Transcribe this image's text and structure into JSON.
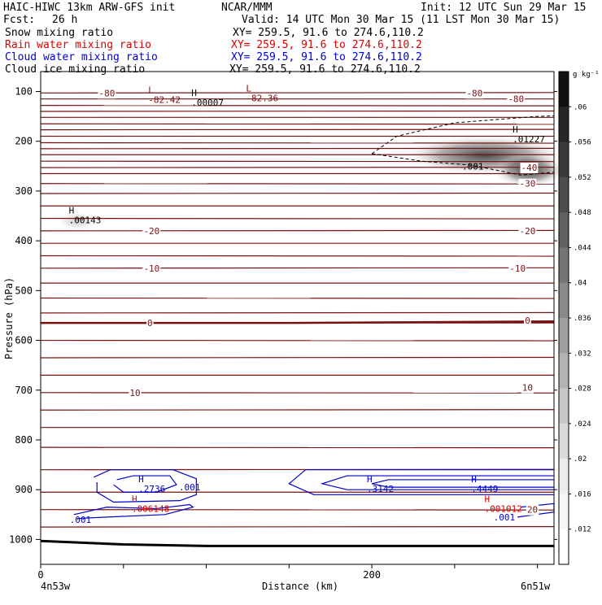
{
  "header": {
    "model": "HAIC-HIWC 13km ARW-GFS init",
    "org": "NCAR/MMM",
    "init": "Init: 12 UTC Sun 29 Mar 15",
    "fcst_label": "Fcst:",
    "fcst_value": "26 h",
    "valid": "Valid: 14 UTC Mon 30 Mar 15 (11 LST Mon 30 Mar 15)"
  },
  "fields": [
    {
      "name": "Snow mixing ratio",
      "xy": "XY= 259.5, 91.6 to 274.6,110.2",
      "color": "#000000"
    },
    {
      "name": "Rain water mixing ratio",
      "xy": "XY= 259.5, 91.6 to 274.6,110.2",
      "color": "#dd0000"
    },
    {
      "name": "Cloud water mixing ratio",
      "xy": "XY= 259.5, 91.6 to 274.6,110.2",
      "color": "#0000cc"
    },
    {
      "name": "Cloud ice mixing ratio",
      "xy": "XY= 259.5, 91.6 to 274.6,110.2",
      "color": "#000000"
    }
  ],
  "chart_data": {
    "type": "contour",
    "xlabel": "Distance (km)",
    "ylabel": "Pressure (hPa)",
    "xlim": [
      0,
      310
    ],
    "ylim": [
      1050,
      60
    ],
    "x_ticks": [
      "0",
      "200"
    ],
    "x_minor_ticks": [
      0,
      50,
      100,
      150,
      200,
      250,
      300
    ],
    "y_ticks": [
      "100",
      "200",
      "300",
      "400",
      "500",
      "600",
      "700",
      "800",
      "900",
      "1000"
    ],
    "y_tick_values": [
      100,
      200,
      300,
      400,
      500,
      600,
      700,
      800,
      900,
      1000
    ],
    "x_left_label": "4n53w",
    "x_right_label": "6n51w",
    "colorbar": {
      "unit": "g kg⁻¹",
      "levels": [
        "0.06",
        ".056",
        ".052",
        ".048",
        ".044",
        ".04",
        ".036",
        ".032",
        ".028",
        ".024",
        ".02",
        ".016",
        ".012"
      ],
      "level_values": [
        0.06,
        0.056,
        0.052,
        0.048,
        0.044,
        0.04,
        0.036,
        0.032,
        0.028,
        0.024,
        0.02,
        0.016,
        0.012
      ],
      "tick_labels": [
        ".06",
        ".056",
        ".052",
        ".048",
        ".044",
        ".04",
        ".036",
        ".032",
        ".028",
        ".024",
        ".02",
        ".016",
        ".012"
      ],
      "colors": [
        "#111111",
        "#262626",
        "#3a3a3a",
        "#4d4d4d",
        "#616161",
        "#757575",
        "#8a8a8a",
        "#9e9e9e",
        "#b3b3b3",
        "#c7c7c7",
        "#dadada",
        "#ececec",
        "#f6f6f6",
        "#ffffff"
      ]
    },
    "isotherm_color": "#7a1010",
    "isotherm_pressures": [
      103,
      115,
      128,
      140,
      152,
      165,
      177,
      190,
      203,
      215,
      227,
      240,
      253,
      265,
      285,
      305,
      330,
      355,
      380,
      405,
      430,
      455,
      485,
      515,
      545,
      565,
      600,
      635,
      670,
      705,
      740,
      775,
      815,
      860,
      905,
      940,
      975
    ],
    "isotherm_labels": [
      {
        "text": "-80",
        "x": 40,
        "p": 103
      },
      {
        "text": "-80",
        "x": 262,
        "p": 103
      },
      {
        "text": "-80",
        "x": 287,
        "p": 115
      },
      {
        "text": "-40",
        "x": 295,
        "p": 253
      },
      {
        "text": "-30",
        "x": 294,
        "p": 285
      },
      {
        "text": "-20",
        "x": 67,
        "p": 380
      },
      {
        "text": "-20",
        "x": 294,
        "p": 380
      },
      {
        "text": "-10",
        "x": 67,
        "p": 455
      },
      {
        "text": "-10",
        "x": 288,
        "p": 455
      },
      {
        "text": "0",
        "x": 66,
        "p": 565
      },
      {
        "text": "0",
        "x": 294,
        "p": 560
      },
      {
        "text": "10",
        "x": 57,
        "p": 705
      },
      {
        "text": "10",
        "x": 294,
        "p": 695
      },
      {
        "text": "20",
        "x": 297,
        "p": 940
      }
    ],
    "extrema": [
      {
        "mark": "L",
        "value": "-82.42",
        "x": 65,
        "p": 113,
        "color": "#7a1010"
      },
      {
        "mark": "L",
        "value": "-82.36",
        "x": 124,
        "p": 110,
        "color": "#7a1010"
      },
      {
        "mark": "H",
        "value": ".00007",
        "x": 91,
        "p": 119,
        "color": "#000000"
      },
      {
        "mark": "H",
        "value": ".01227",
        "x": 285,
        "p": 192,
        "color": "#000000"
      },
      {
        "mark": "H",
        "value": ".00143",
        "x": 17,
        "p": 355,
        "color": "#000000"
      },
      {
        "mark": "H",
        "value": ".2736",
        "x": 59,
        "p": 895,
        "color": "#0000cc"
      },
      {
        "mark": "H",
        "value": ".3142",
        "x": 197,
        "p": 895,
        "color": "#0000cc"
      },
      {
        "mark": "H",
        "value": ".4449",
        "x": 260,
        "p": 895,
        "color": "#0000cc"
      },
      {
        "mark": "H",
        "value": ".006148",
        "x": 55,
        "p": 935,
        "color": "#dd0000"
      },
      {
        "mark": "H",
        "value": ".001012",
        "x": 268,
        "p": 935,
        "color": "#dd0000"
      }
    ],
    "contour_labels": [
      {
        "text": ".001",
        "x": 90,
        "p": 895,
        "color": "#0000cc"
      },
      {
        "text": ".001",
        "x": 24,
        "p": 960,
        "color": "#0000cc"
      },
      {
        "text": ".001",
        "x": 261,
        "p": 250,
        "color": "#000000"
      },
      {
        "text": ".001",
        "x": 280,
        "p": 955,
        "color": "#0000cc"
      }
    ],
    "cloud_water_contours": [
      {
        "name": "cloud-water-contour-left",
        "points": [
          [
            32,
            875
          ],
          [
            42,
            860
          ],
          [
            80,
            860
          ],
          [
            94,
            878
          ],
          [
            94,
            910
          ],
          [
            84,
            922
          ],
          [
            44,
            925
          ],
          [
            34,
            905
          ],
          [
            34,
            885
          ]
        ]
      },
      {
        "name": "cloud-water-contour-left-inner",
        "points": [
          [
            46,
            880
          ],
          [
            56,
            872
          ],
          [
            78,
            872
          ],
          [
            82,
            890
          ],
          [
            70,
            905
          ],
          [
            50,
            905
          ],
          [
            44,
            890
          ]
        ]
      },
      {
        "name": "cloud-water-contour-right",
        "points": [
          [
            310,
            860
          ],
          [
            160,
            860
          ],
          [
            150,
            888
          ],
          [
            165,
            910
          ],
          [
            310,
            910
          ]
        ]
      },
      {
        "name": "cloud-water-contour-right-inner1",
        "points": [
          [
            310,
            872
          ],
          [
            185,
            872
          ],
          [
            170,
            888
          ],
          [
            185,
            900
          ],
          [
            310,
            900
          ]
        ]
      },
      {
        "name": "cloud-water-contour-right-inner2",
        "points": [
          [
            310,
            880
          ],
          [
            210,
            880
          ],
          [
            200,
            888
          ],
          [
            210,
            895
          ],
          [
            310,
            895
          ]
        ]
      },
      {
        "name": "cloud-water-contour-lowleft",
        "points": [
          [
            20,
            950
          ],
          [
            40,
            935
          ],
          [
            70,
            938
          ],
          [
            90,
            930
          ],
          [
            92,
            935
          ],
          [
            75,
            950
          ],
          [
            40,
            955
          ],
          [
            22,
            958
          ]
        ]
      },
      {
        "name": "cloud-water-contour-lowright",
        "points": [
          [
            290,
            935
          ],
          [
            310,
            928
          ],
          [
            310,
            945
          ],
          [
            288,
            955
          ]
        ]
      }
    ],
    "snow_contour": [
      [
        200,
        225
      ],
      [
        215,
        190
      ],
      [
        250,
        163
      ],
      [
        300,
        150
      ],
      [
        310,
        149
      ]
    ],
    "snow_contour_lower": [
      [
        200,
        225
      ],
      [
        230,
        240
      ],
      [
        260,
        248
      ],
      [
        290,
        268
      ],
      [
        310,
        262
      ]
    ],
    "ground_line": [
      [
        0,
        1003
      ],
      [
        50,
        1010
      ],
      [
        100,
        1013
      ],
      [
        150,
        1013
      ],
      [
        200,
        1013
      ],
      [
        250,
        1013
      ],
      [
        310,
        1013
      ]
    ],
    "freezing_line": [
      [
        0,
        565
      ],
      [
        150,
        565
      ],
      [
        310,
        562
      ]
    ],
    "shading_blobs": [
      {
        "x": 268,
        "p": 228,
        "rx_km": 50,
        "ry_hpa": 40,
        "value": 0.052
      },
      {
        "x": 295,
        "p": 258,
        "rx_km": 22,
        "ry_hpa": 35,
        "value": 0.058
      },
      {
        "x": 22,
        "p": 360,
        "rx_km": 12,
        "ry_hpa": 20,
        "value": 0.014
      }
    ]
  }
}
